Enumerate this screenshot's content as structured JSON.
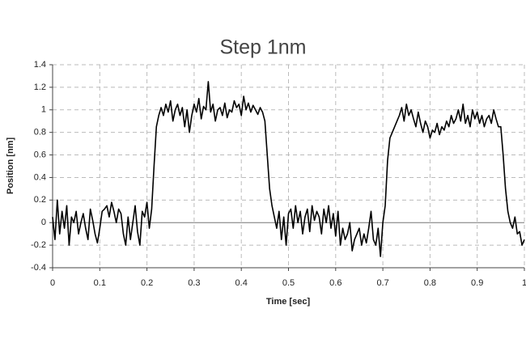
{
  "chart_data": {
    "type": "line",
    "title": "Step 1nm",
    "xlabel": "Time [sec]",
    "ylabel": "Position [nm]",
    "color": "#000000",
    "grid": true,
    "xlim": [
      0,
      1
    ],
    "ylim": [
      -0.4,
      1.4
    ],
    "xticks": [
      0,
      0.1,
      0.2,
      0.3,
      0.4,
      0.5,
      0.6,
      0.7,
      0.8,
      0.9,
      1
    ],
    "yticks": [
      -0.4,
      -0.2,
      0,
      0.2,
      0.4,
      0.6,
      0.8,
      1,
      1.2,
      1.4
    ],
    "x": [
      0,
      0.005,
      0.01,
      0.015,
      0.02,
      0.025,
      0.03,
      0.035,
      0.04,
      0.045,
      0.05,
      0.055,
      0.06,
      0.065,
      0.07,
      0.075,
      0.08,
      0.085,
      0.09,
      0.095,
      0.1,
      0.105,
      0.11,
      0.115,
      0.12,
      0.125,
      0.13,
      0.135,
      0.14,
      0.145,
      0.15,
      0.155,
      0.16,
      0.165,
      0.17,
      0.175,
      0.18,
      0.185,
      0.19,
      0.195,
      0.2,
      0.205,
      0.21,
      0.215,
      0.22,
      0.225,
      0.23,
      0.235,
      0.24,
      0.245,
      0.25,
      0.255,
      0.26,
      0.265,
      0.27,
      0.275,
      0.28,
      0.285,
      0.29,
      0.295,
      0.3,
      0.305,
      0.31,
      0.315,
      0.32,
      0.325,
      0.33,
      0.335,
      0.34,
      0.345,
      0.35,
      0.355,
      0.36,
      0.365,
      0.37,
      0.375,
      0.38,
      0.385,
      0.39,
      0.395,
      0.4,
      0.405,
      0.41,
      0.415,
      0.42,
      0.425,
      0.43,
      0.435,
      0.44,
      0.445,
      0.45,
      0.455,
      0.46,
      0.465,
      0.47,
      0.475,
      0.48,
      0.485,
      0.49,
      0.495,
      0.5,
      0.505,
      0.51,
      0.515,
      0.52,
      0.525,
      0.53,
      0.535,
      0.54,
      0.545,
      0.55,
      0.555,
      0.56,
      0.565,
      0.57,
      0.575,
      0.58,
      0.585,
      0.59,
      0.595,
      0.6,
      0.605,
      0.61,
      0.615,
      0.62,
      0.625,
      0.63,
      0.635,
      0.64,
      0.645,
      0.65,
      0.655,
      0.66,
      0.665,
      0.67,
      0.675,
      0.68,
      0.685,
      0.69,
      0.695,
      0.7,
      0.705,
      0.71,
      0.715,
      0.72,
      0.725,
      0.73,
      0.735,
      0.74,
      0.745,
      0.75,
      0.755,
      0.76,
      0.765,
      0.77,
      0.775,
      0.78,
      0.785,
      0.79,
      0.795,
      0.8,
      0.805,
      0.81,
      0.815,
      0.82,
      0.825,
      0.83,
      0.835,
      0.84,
      0.845,
      0.85,
      0.855,
      0.86,
      0.865,
      0.87,
      0.875,
      0.88,
      0.885,
      0.89,
      0.895,
      0.9,
      0.905,
      0.91,
      0.915,
      0.92,
      0.925,
      0.93,
      0.935,
      0.94,
      0.945,
      0.95,
      0.955,
      0.96,
      0.965,
      0.97,
      0.975,
      0.98,
      0.985,
      0.99,
      0.995,
      1
    ],
    "values": [
      0.05,
      -0.15,
      0.2,
      -0.1,
      0.1,
      -0.05,
      0.15,
      -0.2,
      0.05,
      0.0,
      0.1,
      -0.1,
      0.0,
      0.08,
      -0.05,
      -0.15,
      0.12,
      0.02,
      -0.1,
      -0.18,
      -0.05,
      0.1,
      0.12,
      0.15,
      0.05,
      0.18,
      0.1,
      0.0,
      0.12,
      0.08,
      -0.1,
      -0.2,
      0.05,
      -0.15,
      0.0,
      0.15,
      -0.08,
      -0.2,
      0.1,
      0.05,
      0.18,
      -0.05,
      0.12,
      0.5,
      0.85,
      0.95,
      1.02,
      0.95,
      1.05,
      0.98,
      1.08,
      0.9,
      1.0,
      1.05,
      0.95,
      1.02,
      0.85,
      1.0,
      0.8,
      0.95,
      1.05,
      0.98,
      1.1,
      0.92,
      1.03,
      1.0,
      1.25,
      0.98,
      1.05,
      0.9,
      1.0,
      1.02,
      0.95,
      1.06,
      0.93,
      1.0,
      0.98,
      1.08,
      1.02,
      1.05,
      0.95,
      1.12,
      1.0,
      1.06,
      0.98,
      1.04,
      1.0,
      0.96,
      1.02,
      0.98,
      0.9,
      0.6,
      0.3,
      0.15,
      0.05,
      -0.05,
      0.1,
      -0.15,
      0.05,
      -0.2,
      0.08,
      0.12,
      -0.05,
      0.15,
      0.0,
      0.1,
      -0.1,
      0.05,
      0.12,
      -0.08,
      0.15,
      0.02,
      0.1,
      0.05,
      -0.1,
      0.12,
      0.0,
      0.15,
      -0.05,
      0.08,
      -0.12,
      0.1,
      -0.2,
      -0.05,
      -0.15,
      -0.1,
      0.0,
      -0.25,
      -0.15,
      -0.1,
      -0.05,
      -0.2,
      -0.1,
      -0.18,
      -0.05,
      0.1,
      -0.15,
      -0.2,
      -0.05,
      -0.3,
      0.0,
      0.15,
      0.55,
      0.75,
      0.8,
      0.85,
      0.9,
      0.95,
      1.02,
      0.9,
      1.05,
      0.95,
      1.0,
      0.92,
      0.85,
      0.98,
      0.88,
      0.8,
      0.9,
      0.85,
      0.75,
      0.82,
      0.8,
      0.88,
      0.78,
      0.85,
      0.82,
      0.9,
      0.85,
      0.95,
      0.88,
      0.92,
      1.0,
      0.9,
      1.05,
      0.88,
      0.95,
      0.85,
      1.0,
      0.92,
      0.98,
      0.88,
      0.95,
      0.85,
      0.92,
      0.95,
      0.88,
      1.0,
      0.92,
      0.85,
      0.85,
      0.6,
      0.3,
      0.1,
      0.0,
      -0.05,
      0.05,
      -0.1,
      -0.08,
      -0.2,
      -0.15
    ]
  }
}
